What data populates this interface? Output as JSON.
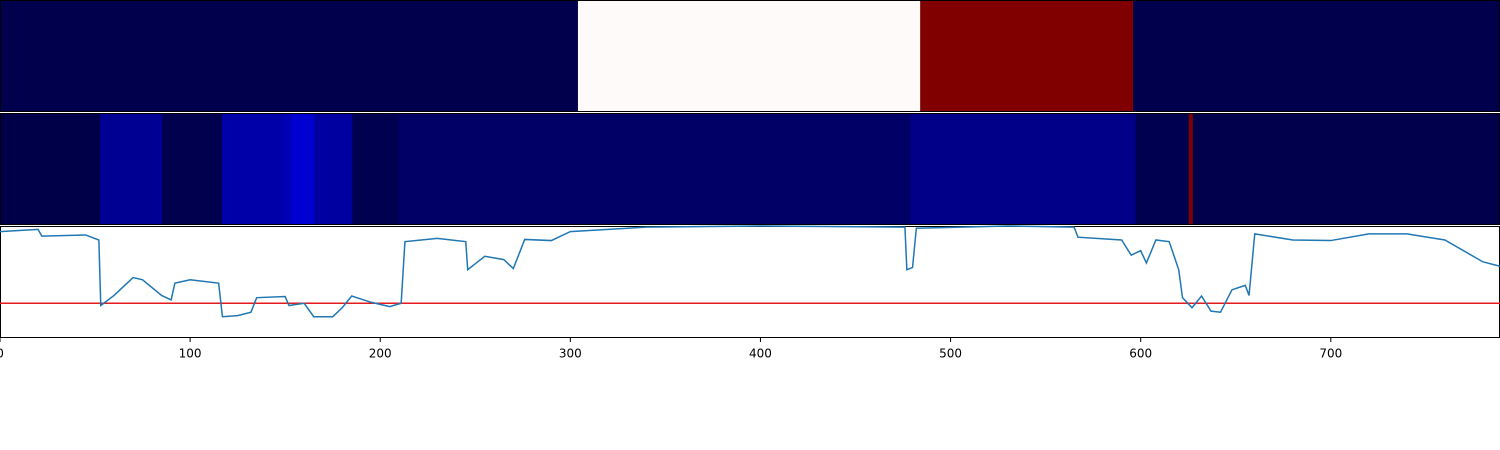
{
  "chart_data": {
    "type": "line",
    "xlim": [
      0,
      789
    ],
    "ylim": [
      0,
      1
    ],
    "xticks": [
      0,
      100,
      200,
      300,
      400,
      500,
      600,
      700
    ],
    "heatmaps": [
      {
        "edges": [
          0,
          304,
          484,
          596,
          789
        ],
        "colors": [
          "#00004c",
          "#fffafa",
          "#800000",
          "#00004c"
        ]
      },
      {
        "edges": [
          0,
          52.6,
          85.3,
          116.8,
          149,
          153.2,
          165.3,
          185.3,
          209.5,
          479,
          597.4,
          625.3,
          627.4,
          789
        ],
        "colors": [
          "#000048",
          "#000092",
          "#00004e",
          "#0000a8",
          "#0000b4",
          "#0000d0",
          "#0000a0",
          "#000050",
          "#000066",
          "#000088",
          "#000050",
          "#800000",
          "#00004c"
        ]
      }
    ],
    "x": [
      0,
      20,
      22,
      45,
      52,
      53,
      60,
      70,
      75,
      85,
      90,
      92,
      100,
      115,
      117,
      125,
      132,
      135,
      150,
      152,
      160,
      165,
      175,
      180,
      185,
      195,
      205,
      211,
      213,
      230,
      245,
      246,
      255,
      265,
      270,
      276,
      290,
      300,
      320,
      340,
      400,
      476,
      477,
      480,
      482,
      530,
      565,
      567,
      590,
      595,
      600,
      603,
      608,
      615,
      620,
      622,
      627,
      632,
      637,
      642,
      648,
      655,
      657,
      660,
      680,
      700,
      720,
      740,
      760,
      780,
      789
    ],
    "series": [
      {
        "color": "#1f77b4",
        "values": [
          0.95,
          0.97,
          0.91,
          0.92,
          0.875,
          0.29,
          0.38,
          0.54,
          0.52,
          0.38,
          0.34,
          0.49,
          0.52,
          0.49,
          0.19,
          0.2,
          0.23,
          0.36,
          0.37,
          0.29,
          0.31,
          0.19,
          0.19,
          0.27,
          0.375,
          0.32,
          0.28,
          0.31,
          0.86,
          0.89,
          0.86,
          0.61,
          0.73,
          0.7,
          0.62,
          0.88,
          0.87,
          0.95,
          0.97,
          0.99,
          1.0,
          0.99,
          0.61,
          0.63,
          0.98,
          1.0,
          0.99,
          0.9,
          0.875,
          0.74,
          0.78,
          0.67,
          0.875,
          0.86,
          0.61,
          0.36,
          0.27,
          0.375,
          0.24,
          0.23,
          0.43,
          0.47,
          0.38,
          0.93,
          0.875,
          0.87,
          0.93,
          0.93,
          0.875,
          0.68,
          0.64
        ]
      }
    ],
    "threshold": {
      "value": 0.31,
      "color": "#e41a1c"
    }
  }
}
